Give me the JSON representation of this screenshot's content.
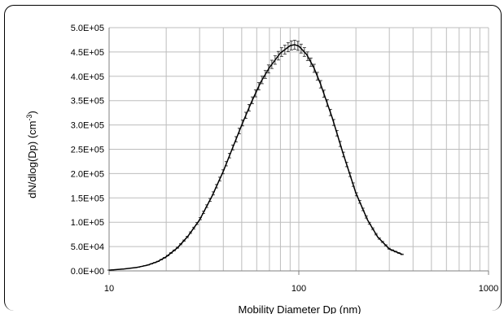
{
  "chart_data": {
    "type": "line",
    "x_scale": "log",
    "xlim": [
      10,
      1000
    ],
    "ylim": [
      0,
      500000
    ],
    "grid": true,
    "xlabel": "Mobility Diameter Dp (nm)",
    "ylabel": "dN/dlog(Dp) (cm",
    "ylabel_sup": "-3",
    "ylabel_end": ")",
    "x_tick_labels": [
      "10",
      "100",
      "1000"
    ],
    "y_tick_labels": [
      "0.0E+00",
      "5.0E+04",
      "1.0E+05",
      "1.5E+05",
      "2.0E+05",
      "2.5E+05",
      "3.0E+05",
      "3.5E+05",
      "4.0E+05",
      "4.5E+05",
      "5.0E+05"
    ],
    "series": [
      {
        "line_color": "#000000",
        "error_bar": "±2%",
        "x": [
          10,
          12,
          14,
          16,
          18,
          20,
          23,
          26,
          30,
          35,
          40,
          45,
          50,
          56,
          63,
          70,
          80,
          90,
          95,
          100,
          110,
          120,
          130,
          150,
          170,
          200,
          230,
          260,
          300,
          350
        ],
        "y": [
          1500,
          4000,
          7000,
          12000,
          19000,
          29000,
          48000,
          71000,
          105000,
          155000,
          205000,
          255000,
          300000,
          345000,
          388000,
          418000,
          448000,
          463000,
          465000,
          462000,
          445000,
          418000,
          385000,
          315000,
          245000,
          160000,
          105000,
          70000,
          45000,
          34000
        ]
      }
    ]
  }
}
